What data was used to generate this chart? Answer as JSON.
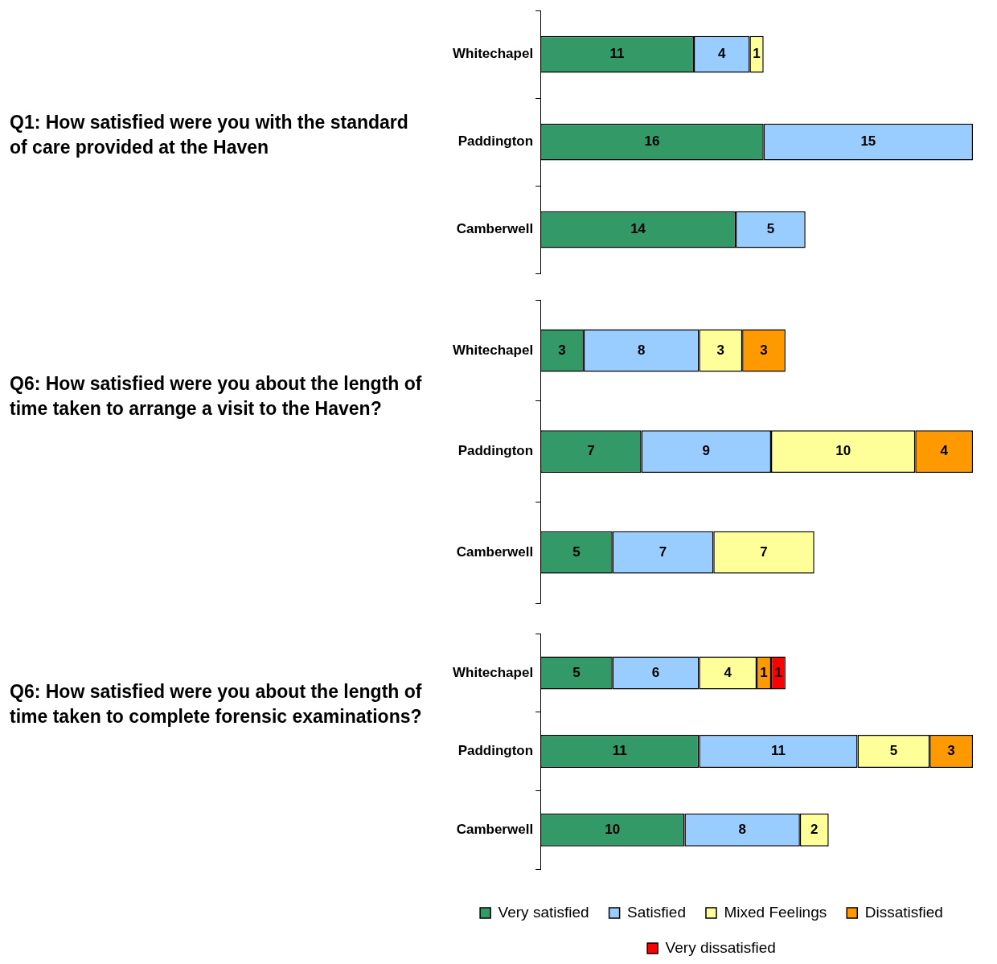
{
  "chart_data": [
    {
      "type": "bar",
      "title": "Q1: How satisfied were you with the standard of care provided at the Haven",
      "orientation": "horizontal",
      "stacked": true,
      "tick_labels": "y",
      "data_labels": true,
      "categories": [
        "Whitechapel",
        "Paddington",
        "Camberwell"
      ],
      "series": [
        {
          "color": "#339966",
          "values": [
            11,
            16,
            14
          ]
        },
        {
          "color": "#99ccff",
          "values": [
            4,
            15,
            5
          ]
        },
        {
          "color": "#ffff99",
          "values": [
            1,
            null,
            null
          ]
        }
      ]
    },
    {
      "type": "bar",
      "title": "Q6: How satisfied were you about the length of time taken to arrange a visit to the Haven?",
      "orientation": "horizontal",
      "stacked": true,
      "tick_labels": "y",
      "data_labels": true,
      "categories": [
        "Whitechapel",
        "Paddington",
        "Camberwell"
      ],
      "series": [
        {
          "color": "#339966",
          "values": [
            3,
            7,
            5
          ]
        },
        {
          "color": "#99ccff",
          "values": [
            8,
            9,
            7
          ]
        },
        {
          "color": "#ffff99",
          "values": [
            3,
            10,
            7
          ]
        },
        {
          "color": "#ff9900",
          "values": [
            3,
            4,
            null
          ]
        }
      ]
    },
    {
      "type": "bar",
      "title": "Q6: How satisfied were you about the length of time taken to complete forensic examinations?",
      "orientation": "horizontal",
      "stacked": true,
      "tick_labels": "y",
      "data_labels": true,
      "legend": "bottom",
      "categories": [
        "Whitechapel",
        "Paddington",
        "Camberwell"
      ],
      "series": [
        {
          "name": "Very satisfied",
          "color": "#339966",
          "values": [
            5,
            11,
            10
          ]
        },
        {
          "name": "Satisfied",
          "color": "#99ccff",
          "values": [
            6,
            11,
            8
          ]
        },
        {
          "name": "Mixed Feelings",
          "color": "#ffff99",
          "values": [
            4,
            5,
            2
          ]
        },
        {
          "name": "Dissatisfied",
          "color": "#ff9900",
          "values": [
            1,
            3,
            null
          ]
        },
        {
          "name": "Very dissatisfied",
          "color": "#ff0000",
          "values": [
            1,
            null,
            null
          ]
        }
      ]
    }
  ]
}
